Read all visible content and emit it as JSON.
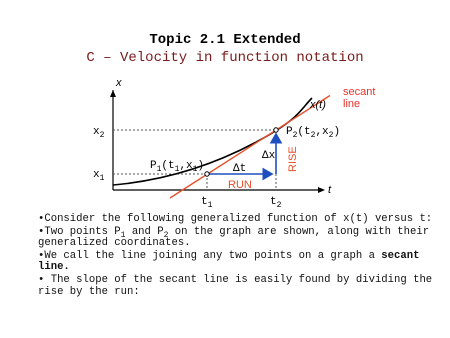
{
  "title": "Topic 2.1 Extended",
  "subtitle": "C – Velocity in function notation",
  "diagram": {
    "y_axis_label": "x",
    "x_axis_label": "t",
    "curve_label": "x(t)",
    "secant_label": [
      "secant",
      "line"
    ],
    "x2_label": [
      "x",
      "2"
    ],
    "x1_label": [
      "x",
      "1"
    ],
    "t1_label": [
      "t",
      "1"
    ],
    "t2_label": [
      "t",
      "2"
    ],
    "p1_label": [
      "P",
      "1",
      "(t",
      "1",
      ",x",
      "1",
      ")"
    ],
    "p2_label": [
      "P",
      "2",
      "(t",
      "2",
      ",x",
      "2",
      ")"
    ],
    "delta_x": "Δx",
    "delta_t": "Δt",
    "rise": "RISE",
    "run": "RUN"
  },
  "bullets": [
    [
      {
        "text": "Consider the following generalized function of x(t) versus t:"
      }
    ],
    [
      {
        "text": "Two points P"
      },
      {
        "text": "1",
        "style": "sub"
      },
      {
        "text": " and P"
      },
      {
        "text": "2",
        "style": "sub"
      },
      {
        "text": " on the graph are shown, along with their generalized coordinates."
      }
    ],
    [
      {
        "text": "We call the line joining any two points on a graph a "
      },
      {
        "text": "secant line.",
        "style": "bold"
      }
    ],
    [
      {
        "text": " The slope of the secant line is easily found by dividing the rise by the run:"
      }
    ]
  ]
}
